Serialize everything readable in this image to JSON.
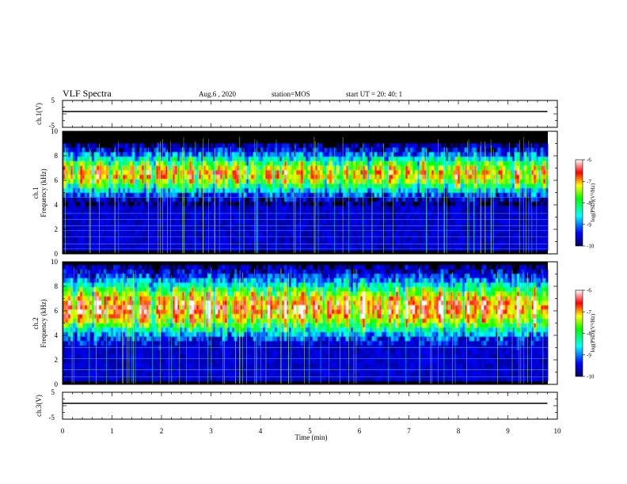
{
  "header": {
    "title": "VLF Spectra",
    "date": "Aug.6  , 2020",
    "station": "station=MOS",
    "start_ut": "start  UT  =   20: 40: 1"
  },
  "chart_data": [
    {
      "type": "line",
      "panel": "ch1-waveform",
      "ylabel": "ch.1(V)",
      "y_ticks": [
        "5",
        "-5"
      ],
      "ylim": [
        -5,
        5
      ],
      "x": [
        0,
        9.8
      ],
      "y": [
        0,
        0
      ]
    },
    {
      "type": "heatmap",
      "panel": "ch1-spectrogram",
      "ylabel_top": "ch.1",
      "ylabel": "Frequency  (kHz)",
      "y_ticks": [
        "0",
        "2",
        "4",
        "6",
        "8",
        "10"
      ],
      "ylim": [
        0,
        10
      ],
      "xlim": [
        0,
        9.8
      ],
      "colorbar": {
        "label": "log(PSD)(V²/Hz)",
        "ticks": [
          "-6",
          "-7",
          "-8",
          "-9",
          "-10"
        ],
        "range": [
          -10,
          -6
        ]
      }
    },
    {
      "type": "heatmap",
      "panel": "ch2-spectrogram",
      "ylabel_top": "ch.2",
      "ylabel": "Frequency  (kHz)",
      "y_ticks": [
        "0",
        "2",
        "4",
        "6",
        "8",
        "10"
      ],
      "ylim": [
        0,
        10
      ],
      "xlim": [
        0,
        9.8
      ],
      "colorbar": {
        "label": "log(PSD)(V²/Hz)",
        "ticks": [
          "-6",
          "-7",
          "-8",
          "-9",
          "-10"
        ],
        "range": [
          -10,
          -6
        ]
      }
    },
    {
      "type": "line",
      "panel": "ch3-waveform",
      "ylabel": "ch.3(V)",
      "y_ticks": [
        "5",
        "-5"
      ],
      "ylim": [
        -5,
        5
      ],
      "x": [
        0,
        9.8
      ],
      "y": [
        0,
        0
      ]
    }
  ],
  "x_axis": {
    "label": "Time  (min)",
    "ticks": [
      "0",
      "1",
      "2",
      "3",
      "4",
      "5",
      "6",
      "7",
      "8",
      "9",
      "10"
    ],
    "range": [
      0,
      10
    ]
  },
  "colors": {
    "background": "#000000",
    "colormap": [
      "#000060",
      "#0000ff",
      "#00ffff",
      "#00ff00",
      "#ffff00",
      "#ff0000",
      "#ffffff"
    ]
  }
}
